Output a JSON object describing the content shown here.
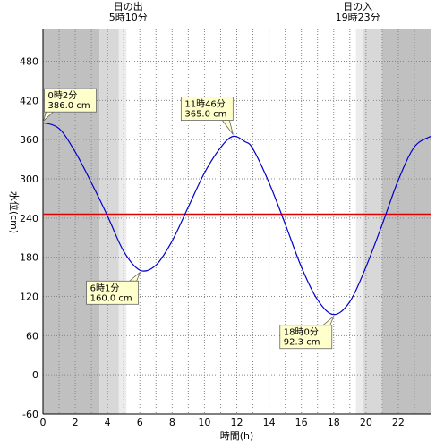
{
  "chart_data": {
    "type": "line",
    "xlabel": "時間(h)",
    "ylabel": "水位(cm)",
    "xlim": [
      0,
      24
    ],
    "ylim": [
      -60,
      530
    ],
    "xticks": [
      0,
      2,
      4,
      6,
      8,
      10,
      12,
      14,
      16,
      18,
      20,
      22
    ],
    "yticks": [
      -60,
      0,
      60,
      120,
      180,
      240,
      300,
      360,
      420,
      480
    ],
    "reference_line": {
      "value": 246,
      "color": "#e00000"
    },
    "series_color": "#0000cc",
    "sunrise": {
      "label": "日の出",
      "time": "5時10分",
      "hour": 5.17
    },
    "sunset": {
      "label": "日の入",
      "time": "19時23分",
      "hour": 19.38
    },
    "shading": [
      {
        "from": 0,
        "to": 3.5,
        "level": "night",
        "color": "#c0c0c0"
      },
      {
        "from": 3.5,
        "to": 4.7,
        "level": "twilight",
        "color": "#d8d8d8"
      },
      {
        "from": 4.7,
        "to": 5.17,
        "level": "dawn",
        "color": "#ececec"
      },
      {
        "from": 19.38,
        "to": 19.85,
        "level": "dusk",
        "color": "#ececec"
      },
      {
        "from": 19.85,
        "to": 21.0,
        "level": "twilight",
        "color": "#d8d8d8"
      },
      {
        "from": 21.0,
        "to": 24,
        "level": "night",
        "color": "#c0c0c0"
      }
    ],
    "x": [
      0,
      1,
      2,
      3,
      4,
      5,
      6.02,
      7,
      8,
      9,
      10,
      11,
      11.77,
      12.5,
      13,
      14,
      15,
      16,
      17,
      18,
      19,
      20,
      21,
      22,
      23,
      24
    ],
    "y": [
      386.0,
      377,
      341,
      294,
      243,
      189,
      160.0,
      168,
      205,
      257,
      309,
      348,
      365.0,
      357,
      346,
      294,
      231,
      165,
      115,
      92.3,
      112,
      165,
      230,
      298,
      349,
      365
    ],
    "annotations": [
      {
        "time": "0時2分",
        "value": "386.0 cm",
        "hour": 0.03,
        "level": 386.0
      },
      {
        "time": "6時1分",
        "value": "160.0 cm",
        "hour": 6.02,
        "level": 160.0
      },
      {
        "time": "11時46分",
        "value": "365.0 cm",
        "hour": 11.77,
        "level": 365.0
      },
      {
        "time": "18時0分",
        "value": "92.3 cm",
        "hour": 18.0,
        "level": 92.3
      }
    ]
  }
}
